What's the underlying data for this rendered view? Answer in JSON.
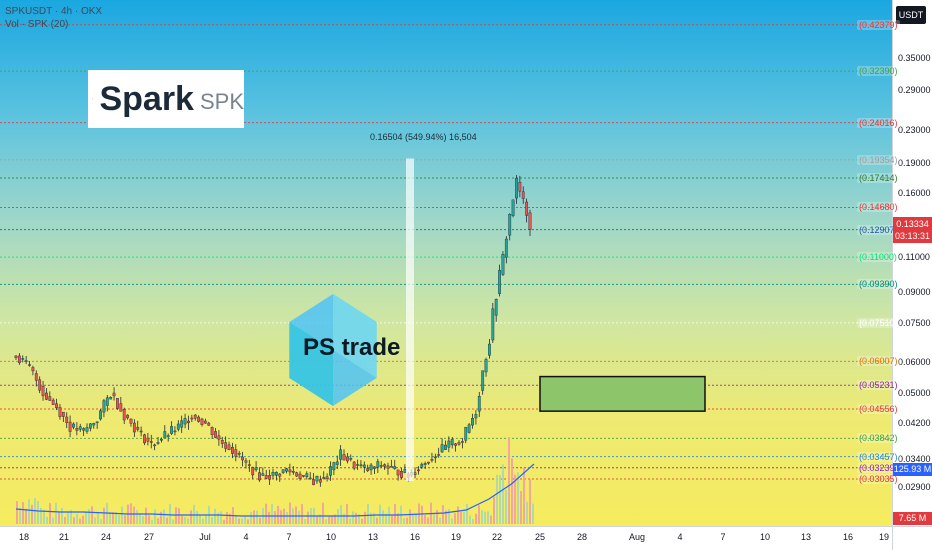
{
  "header": {
    "symbol_line": "SPKUSDT · 4h · OKX",
    "indicator_line": "Vol · SPK (20)"
  },
  "logo": {
    "brand": "Spark",
    "ticker": "SPK",
    "star_colors": [
      "#e8344d",
      "#f39a2e"
    ]
  },
  "watermark": {
    "text": "PS trade",
    "hex_colors": [
      "#4fc3f7",
      "#80deea",
      "#26c6da"
    ]
  },
  "measure": {
    "label": "0.16504 (549.94%) 16,504"
  },
  "currency_badge": "USDT",
  "current_price": {
    "price": "0.13334",
    "countdown": "03:13:31"
  },
  "volume_ma_value": "125.93 M",
  "volume_value": "7.65 M",
  "price_ticks": [
    "0.35000",
    "0.29000",
    "0.23000",
    "0.19000",
    "0.16000",
    "0.11000",
    "0.09000",
    "0.07500",
    "0.06000",
    "0.05000",
    "0.04200",
    "0.03400",
    "0.02900"
  ],
  "levels": [
    {
      "price": "0.42379",
      "color": "#e53935"
    },
    {
      "price": "0.32390",
      "color": "#43a047"
    },
    {
      "price": "0.24016",
      "color": "#e53935"
    },
    {
      "price": "0.19354",
      "color": "#9e9e9e"
    },
    {
      "price": "0.17414",
      "color": "#2e7d32"
    },
    {
      "price": "0.14680",
      "color": "#e53935"
    },
    {
      "price": "0.12907",
      "color": "#1e5aa8"
    },
    {
      "price": "0.11000",
      "color": "#00e676"
    },
    {
      "price": "0.09390",
      "color": "#00897b"
    },
    {
      "price": "0.07510",
      "color": "#ffffff"
    },
    {
      "price": "0.06007",
      "color": "#ef6c00"
    },
    {
      "price": "0.05231",
      "color": "#8e24aa"
    },
    {
      "price": "0.04556",
      "color": "#e53935"
    },
    {
      "price": "0.03842",
      "color": "#43a047"
    },
    {
      "price": "0.03457",
      "color": "#1e88e5"
    },
    {
      "price": "0.03239",
      "color": "#8e24aa"
    },
    {
      "price": "0.03035",
      "color": "#e53935"
    }
  ],
  "time_ticks": [
    "18",
    "21",
    "24",
    "27",
    "Jul",
    "4",
    "7",
    "10",
    "13",
    "16",
    "19",
    "22",
    "25",
    "28",
    "Aug",
    "4",
    "7",
    "10",
    "13",
    "16",
    "19"
  ],
  "chart_data": {
    "type": "candlestick",
    "symbol": "SPKUSDT",
    "exchange": "OKX",
    "timeframe": "4h",
    "ylim": [
      0.027,
      0.46
    ],
    "y_scale": "log",
    "close_path": [
      {
        "t": "Jun 17",
        "close": 0.062
      },
      {
        "t": "Jun 18",
        "close": 0.058
      },
      {
        "t": "Jun 19",
        "close": 0.05
      },
      {
        "t": "Jun 20",
        "close": 0.046
      },
      {
        "t": "Jun 21",
        "close": 0.041
      },
      {
        "t": "Jun 22",
        "close": 0.04
      },
      {
        "t": "Jun 23",
        "close": 0.043
      },
      {
        "t": "Jun 24",
        "close": 0.05
      },
      {
        "t": "Jun 25",
        "close": 0.044
      },
      {
        "t": "Jun 26",
        "close": 0.04
      },
      {
        "t": "Jun 27",
        "close": 0.037
      },
      {
        "t": "Jun 28",
        "close": 0.039
      },
      {
        "t": "Jun 29",
        "close": 0.041
      },
      {
        "t": "Jun 30",
        "close": 0.044
      },
      {
        "t": "Jul 1",
        "close": 0.042
      },
      {
        "t": "Jul 2",
        "close": 0.038
      },
      {
        "t": "Jul 3",
        "close": 0.036
      },
      {
        "t": "Jul 4",
        "close": 0.033
      },
      {
        "t": "Jul 5",
        "close": 0.031
      },
      {
        "t": "Jul 6",
        "close": 0.031
      },
      {
        "t": "Jul 7",
        "close": 0.032
      },
      {
        "t": "Jul 8",
        "close": 0.031
      },
      {
        "t": "Jul 9",
        "close": 0.03
      },
      {
        "t": "Jul 10",
        "close": 0.031
      },
      {
        "t": "Jul 11",
        "close": 0.035
      },
      {
        "t": "Jul 12",
        "close": 0.033
      },
      {
        "t": "Jul 13",
        "close": 0.032
      },
      {
        "t": "Jul 14",
        "close": 0.033
      },
      {
        "t": "Jul 15",
        "close": 0.032
      },
      {
        "t": "Jul 16",
        "close": 0.031
      },
      {
        "t": "Jul 17",
        "close": 0.033
      },
      {
        "t": "Jul 18",
        "close": 0.035
      },
      {
        "t": "Jul 19",
        "close": 0.037
      },
      {
        "t": "Jul 20",
        "close": 0.038
      },
      {
        "t": "Jul 21",
        "close": 0.045
      },
      {
        "t": "Jul 22",
        "close": 0.068
      },
      {
        "t": "Jul 23",
        "close": 0.11
      },
      {
        "t": "Jul 24",
        "close": 0.17
      },
      {
        "t": "Jul 24 late",
        "close": 0.133
      }
    ],
    "zone_box": {
      "top": 0.055,
      "bottom": 0.045,
      "from": "Jul 24",
      "to": "Aug 6"
    },
    "measure_range": {
      "from": 0.03,
      "to": 0.195,
      "change": "0.16504 (549.94%) 16,504"
    },
    "volume_ma": [
      15,
      13,
      12,
      12,
      11,
      10,
      10,
      9,
      9,
      9,
      8,
      8,
      8,
      8,
      8,
      8,
      9,
      9,
      10,
      11,
      14,
      25,
      40,
      60
    ]
  }
}
